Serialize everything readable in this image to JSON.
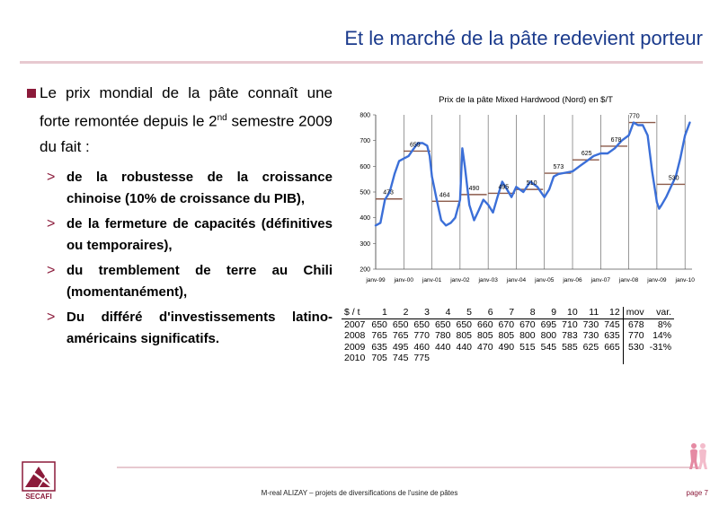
{
  "slide": {
    "title": "Et le marché de la pâte redevient porteur",
    "main_bullet": {
      "text_before": "Le prix mondial de la pâte connaît une forte remontée depuis le 2",
      "sup": "nd",
      "text_after": " semestre 2009  du fait :"
    },
    "sub_bullets": [
      "de la robustesse de la croissance chinoise (10% de croissance du PIB),",
      "de la fermeture de capacités (définitives ou temporaires),",
      "du tremblement de terre au Chili (momentanément),",
      "Du différé d'investissements latino-américains significatifs."
    ],
    "footer": "M-real ALIZAY – projets de diversifications de l'usine de pâtes",
    "page": "page 7",
    "logo_text": "SECAFI",
    "accent_color": "#8b1a3a",
    "title_color": "#1a3a8c"
  },
  "chart_data": {
    "type": "line",
    "title": "Prix de la pâte Mixed Hardwood (Nord) en $/T",
    "xlabel": "",
    "ylabel": "",
    "xlim": [
      1999.0,
      2010.25
    ],
    "ylim": [
      200,
      800
    ],
    "yticks": [
      200,
      300,
      400,
      500,
      600,
      700,
      800
    ],
    "xticks": [
      {
        "x": 1999.0,
        "label": "janv-99"
      },
      {
        "x": 2000.0,
        "label": "janv-00"
      },
      {
        "x": 2001.0,
        "label": "janv-01"
      },
      {
        "x": 2002.0,
        "label": "janv-02"
      },
      {
        "x": 2003.0,
        "label": "janv-03"
      },
      {
        "x": 2004.0,
        "label": "janv-04"
      },
      {
        "x": 2005.0,
        "label": "janv-05"
      },
      {
        "x": 2006.0,
        "label": "janv-06"
      },
      {
        "x": 2007.0,
        "label": "janv-07"
      },
      {
        "x": 2008.0,
        "label": "janv-08"
      },
      {
        "x": 2009.0,
        "label": "janv-09"
      },
      {
        "x": 2010.0,
        "label": "janv-10"
      }
    ],
    "series": [
      {
        "color": "#3b6fd8",
        "x": [
          1999.0,
          1999.17,
          1999.33,
          1999.5,
          1999.67,
          1999.83,
          2000.0,
          2000.17,
          2000.33,
          2000.5,
          2000.67,
          2000.83,
          2000.92,
          2001.0,
          2001.17,
          2001.33,
          2001.5,
          2001.67,
          2001.83,
          2002.0,
          2002.08,
          2002.17,
          2002.33,
          2002.5,
          2002.67,
          2002.83,
          2003.0,
          2003.17,
          2003.33,
          2003.5,
          2003.67,
          2003.83,
          2004.0,
          2004.25,
          2004.5,
          2004.75,
          2005.0,
          2005.17,
          2005.33,
          2005.5,
          2005.75,
          2006.0,
          2006.25,
          2006.5,
          2006.75,
          2007.0,
          2007.25,
          2007.5,
          2007.75,
          2008.0,
          2008.17,
          2008.33,
          2008.5,
          2008.67,
          2008.83,
          2009.0,
          2009.08,
          2009.17,
          2009.33,
          2009.5,
          2009.67,
          2009.83,
          2010.0,
          2010.17
        ],
        "y": [
          370,
          380,
          470,
          500,
          570,
          620,
          630,
          640,
          665,
          690,
          690,
          680,
          640,
          560,
          470,
          390,
          370,
          380,
          400,
          470,
          670,
          600,
          450,
          390,
          430,
          470,
          450,
          420,
          480,
          540,
          510,
          480,
          520,
          500,
          540,
          520,
          480,
          510,
          560,
          570,
          575,
          580,
          600,
          620,
          640,
          650,
          650,
          670,
          700,
          720,
          770,
          760,
          760,
          720,
          580,
          460,
          435,
          450,
          480,
          520,
          560,
          630,
          720,
          770
        ]
      }
    ],
    "annual_averages": [
      {
        "x0": 1999.0,
        "x1": 1999.95,
        "value": 473
      },
      {
        "x0": 2000.0,
        "x1": 2000.95,
        "value": 659
      },
      {
        "x0": 2001.0,
        "x1": 2001.95,
        "value": 464
      },
      {
        "x0": 2002.0,
        "x1": 2002.95,
        "value": 490
      },
      {
        "x0": 2003.0,
        "x1": 2003.95,
        "value": 495
      },
      {
        "x0": 2004.0,
        "x1": 2004.95,
        "value": 510
      },
      {
        "x0": 2005.0,
        "x1": 2005.95,
        "value": 573
      },
      {
        "x0": 2006.0,
        "x1": 2006.95,
        "value": 625
      },
      {
        "x0": 2007.0,
        "x1": 2007.95,
        "value": 678
      },
      {
        "x0": 2008.0,
        "x1": 2008.95,
        "value": 770
      },
      {
        "x0": 2009.0,
        "x1": 2010.0,
        "value": 530
      }
    ],
    "annotations": [
      {
        "x": 1999.45,
        "y": 473,
        "label": "473"
      },
      {
        "x": 2000.4,
        "y": 659,
        "label": "659"
      },
      {
        "x": 2001.45,
        "y": 464,
        "label": "464"
      },
      {
        "x": 2002.5,
        "y": 490,
        "label": "490"
      },
      {
        "x": 2003.55,
        "y": 495,
        "label": "495"
      },
      {
        "x": 2004.55,
        "y": 510,
        "label": "510"
      },
      {
        "x": 2005.5,
        "y": 573,
        "label": "573"
      },
      {
        "x": 2006.5,
        "y": 625,
        "label": "625"
      },
      {
        "x": 2007.55,
        "y": 678,
        "label": "678"
      },
      {
        "x": 2008.2,
        "y": 770,
        "label": "770"
      },
      {
        "x": 2009.6,
        "y": 530,
        "label": "530"
      }
    ],
    "grid": "vertical",
    "legend": "none"
  },
  "price_table": {
    "headers": [
      "$ / t",
      "1",
      "2",
      "3",
      "4",
      "5",
      "6",
      "7",
      "8",
      "9",
      "10",
      "11",
      "12",
      "mov",
      "var."
    ],
    "rows": [
      [
        "2007",
        "650",
        "650",
        "650",
        "650",
        "650",
        "660",
        "670",
        "670",
        "695",
        "710",
        "730",
        "745",
        "678",
        "8%"
      ],
      [
        "2008",
        "765",
        "765",
        "770",
        "780",
        "805",
        "805",
        "805",
        "800",
        "800",
        "783",
        "730",
        "635",
        "770",
        "14%"
      ],
      [
        "2009",
        "635",
        "495",
        "460",
        "440",
        "440",
        "470",
        "490",
        "515",
        "545",
        "585",
        "625",
        "665",
        "530",
        "-31%"
      ],
      [
        "2010",
        "705",
        "745",
        "775",
        "",
        "",
        "",
        "",
        "",
        "",
        "",
        "",
        "",
        "",
        ""
      ]
    ]
  }
}
